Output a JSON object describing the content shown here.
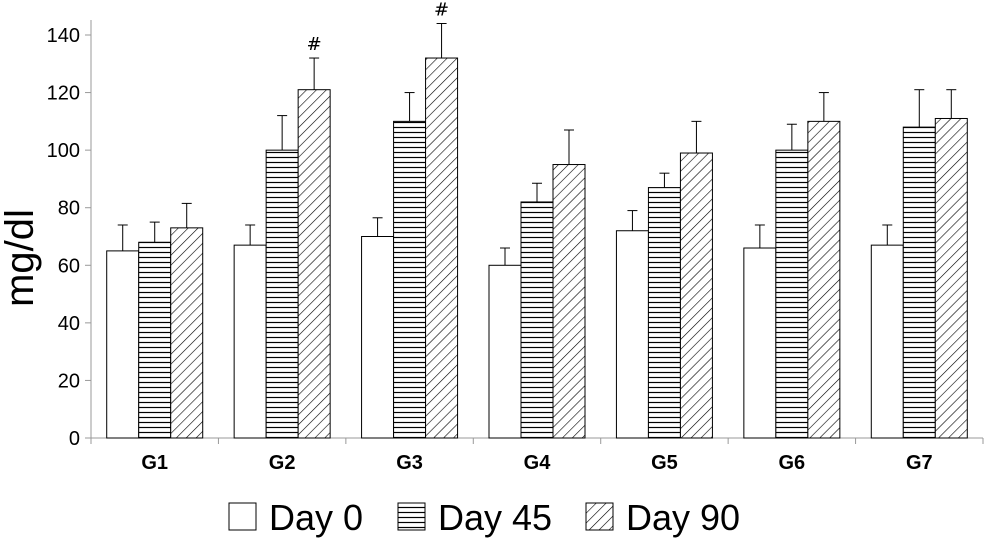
{
  "chart_data": {
    "type": "bar",
    "title": "",
    "xlabel": "",
    "ylabel": "mg/dl",
    "ylim": [
      0,
      145
    ],
    "yticks": [
      0,
      20,
      40,
      60,
      80,
      100,
      120,
      140
    ],
    "grid": false,
    "legend_position": "bottom",
    "categories": [
      "G1",
      "G2",
      "G3",
      "G4",
      "G5",
      "G6",
      "G7"
    ],
    "series": [
      {
        "name": "Day 0",
        "pattern": "none",
        "values": [
          65,
          67,
          70,
          60,
          72,
          66,
          67
        ],
        "errors": [
          9,
          7,
          6.5,
          6,
          7,
          8,
          7
        ]
      },
      {
        "name": "Day 45",
        "pattern": "horizontal-lines",
        "values": [
          68,
          100,
          110,
          82,
          87,
          100,
          108
        ],
        "errors": [
          7,
          12,
          10,
          6.5,
          5,
          9,
          13
        ]
      },
      {
        "name": "Day 90",
        "pattern": "diagonal-lines",
        "values": [
          73,
          121,
          132,
          95,
          99,
          110,
          111
        ],
        "errors": [
          8.5,
          11,
          12,
          12,
          11,
          10,
          10
        ]
      }
    ],
    "annotations": [
      {
        "category": "G2",
        "series": "Day 90",
        "text": "#"
      },
      {
        "category": "G3",
        "series": "Day 90",
        "text": "#"
      }
    ],
    "colors": {
      "bar_fill": "#ffffff",
      "stroke": "#000000",
      "axis": "#999999"
    }
  }
}
